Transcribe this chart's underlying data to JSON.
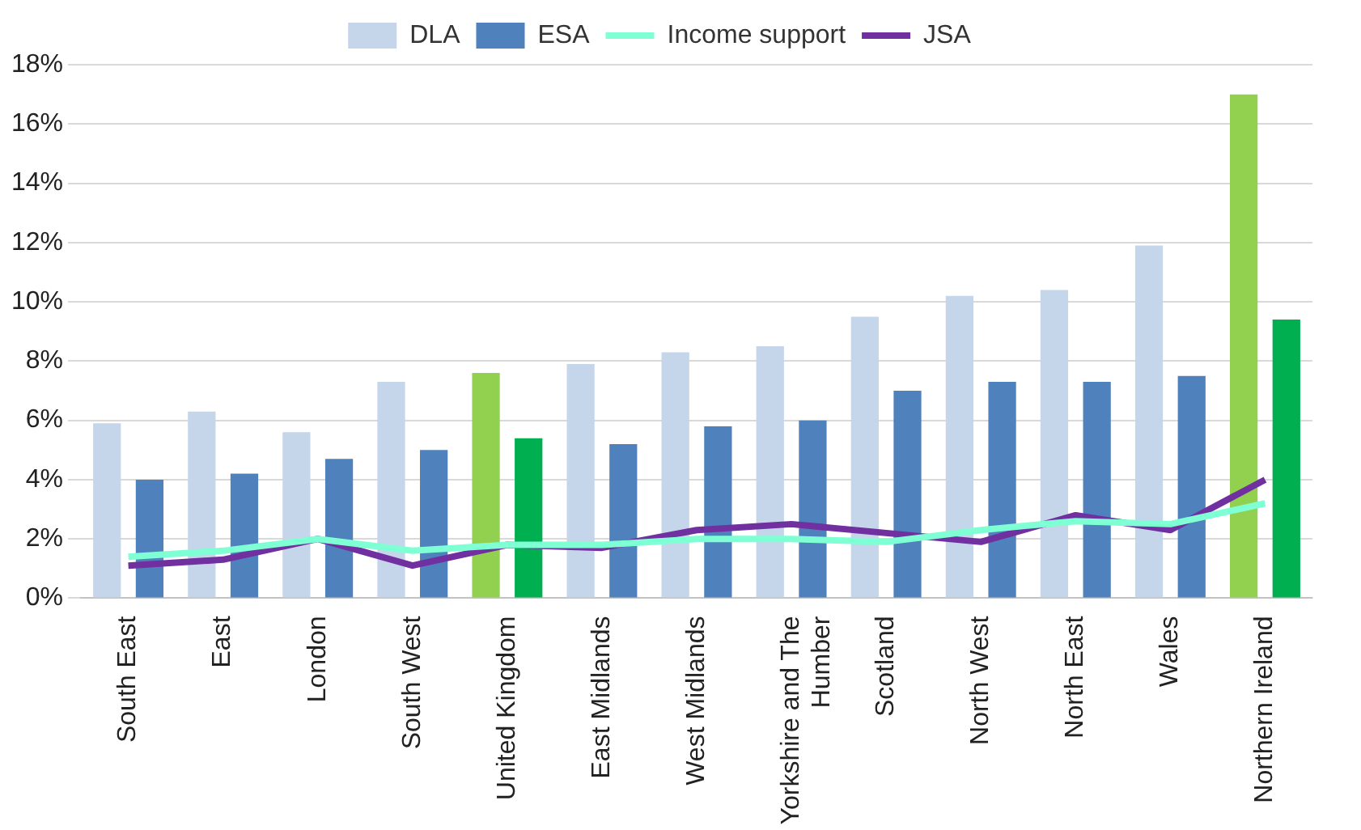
{
  "chart_data": {
    "type": "bar",
    "categories": [
      "South East",
      "East",
      "London",
      "South West",
      "United Kingdom",
      "East Midlands",
      "West Midlands",
      "Yorkshire and The Humber",
      "Scotland",
      "North West",
      "North East",
      "Wales",
      "Northern Ireland"
    ],
    "series": [
      {
        "name": "DLA",
        "color": "#c5d5ea",
        "colors": [
          "#c5d5ea",
          "#c5d5ea",
          "#c5d5ea",
          "#c5d5ea",
          "#92d050",
          "#c5d5ea",
          "#c5d5ea",
          "#c5d5ea",
          "#c5d5ea",
          "#c5d5ea",
          "#c5d5ea",
          "#c5d5ea",
          "#92d050"
        ],
        "values": [
          5.9,
          6.3,
          5.6,
          7.3,
          7.6,
          7.9,
          8.3,
          8.5,
          9.5,
          10.2,
          10.4,
          11.9,
          17.0
        ]
      },
      {
        "name": "ESA",
        "color": "#4f81bd",
        "colors": [
          "#4f81bd",
          "#4f81bd",
          "#4f81bd",
          "#4f81bd",
          "#00b050",
          "#4f81bd",
          "#4f81bd",
          "#4f81bd",
          "#4f81bd",
          "#4f81bd",
          "#4f81bd",
          "#4f81bd",
          "#00b050"
        ],
        "values": [
          4.0,
          4.2,
          4.7,
          5.0,
          5.4,
          5.2,
          5.8,
          6.0,
          7.0,
          7.3,
          7.3,
          7.5,
          9.4
        ]
      },
      {
        "name": "Income support",
        "type": "line",
        "color": "#7fffd4",
        "values": [
          1.4,
          1.6,
          2.0,
          1.6,
          1.8,
          1.8,
          2.0,
          2.0,
          1.9,
          2.3,
          2.6,
          2.5,
          3.2
        ]
      },
      {
        "name": "JSA",
        "type": "line",
        "color": "#7030a0",
        "values": [
          1.1,
          1.3,
          2.0,
          1.1,
          1.8,
          1.7,
          2.3,
          2.5,
          2.2,
          1.9,
          2.8,
          2.3,
          4.0
        ]
      }
    ],
    "ylim": [
      0,
      18
    ],
    "yticks": [
      {
        "value": 0,
        "label": "0%"
      },
      {
        "value": 2,
        "label": "2%"
      },
      {
        "value": 4,
        "label": "4%"
      },
      {
        "value": 6,
        "label": "6%"
      },
      {
        "value": 8,
        "label": "8%"
      },
      {
        "value": 10,
        "label": "10%"
      },
      {
        "value": 12,
        "label": "12%"
      },
      {
        "value": 14,
        "label": "14%"
      },
      {
        "value": 16,
        "label": "16%"
      },
      {
        "value": 18,
        "label": "18%"
      }
    ],
    "grid": "y",
    "legend": "top",
    "marker": "none",
    "line_style": "solid"
  }
}
